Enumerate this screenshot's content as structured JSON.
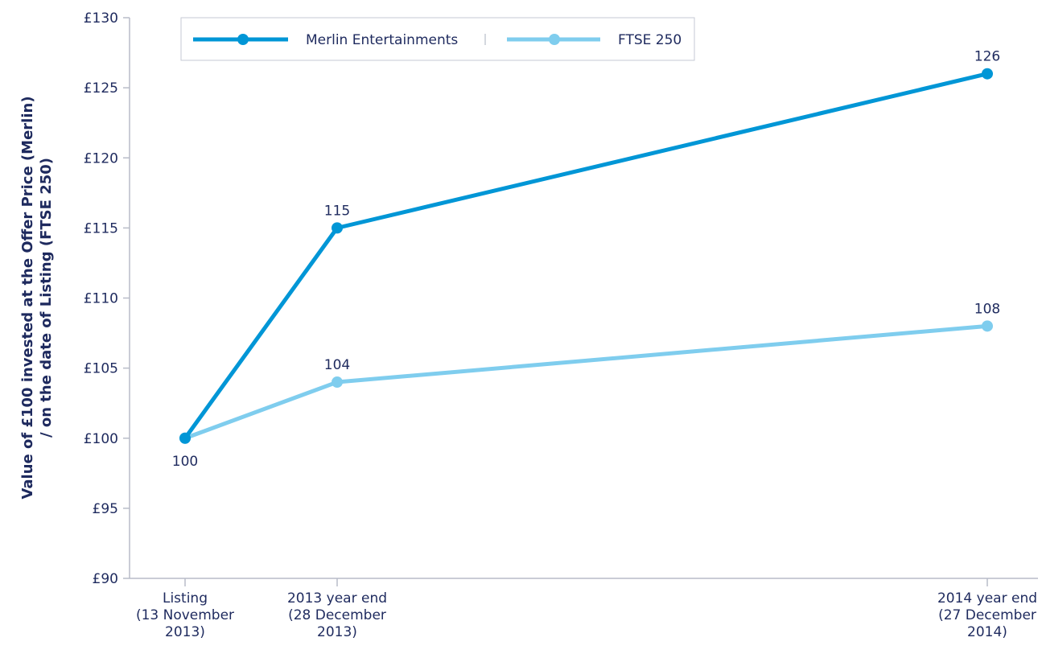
{
  "chart_data": {
    "type": "line",
    "ylabel": [
      "Value of £100 invested at the Offer Price (Merlin)",
      "/ on the date of Listing (FTSE 250)"
    ],
    "xlabel": "",
    "title": "",
    "ylim": [
      90,
      130
    ],
    "y_ticks": [
      90,
      95,
      100,
      105,
      110,
      115,
      120,
      125,
      130
    ],
    "y_tick_labels": [
      "£90",
      "£95",
      "£100",
      "£105",
      "£110",
      "£115",
      "£120",
      "£125",
      "£130"
    ],
    "x": [
      "2013-11-13",
      "2013-12-28",
      "2014-12-27"
    ],
    "x_tick_labels": [
      [
        "Listing",
        "(13 November",
        "2013)"
      ],
      [
        "2013 year end",
        "(28 December",
        "2013)"
      ],
      [
        "2014 year end",
        "(27 December",
        "2014)"
      ]
    ],
    "series": [
      {
        "name": "Merlin Entertainments",
        "values": [
          100,
          115,
          126
        ],
        "data_labels": [
          "100",
          "115",
          "126"
        ],
        "color": "#0096d6"
      },
      {
        "name": "FTSE 250",
        "values": [
          100,
          104,
          108
        ],
        "data_labels": [
          "",
          "104",
          "108"
        ],
        "color": "#7fcdee"
      }
    ],
    "legend": "top-left",
    "grid": false
  }
}
